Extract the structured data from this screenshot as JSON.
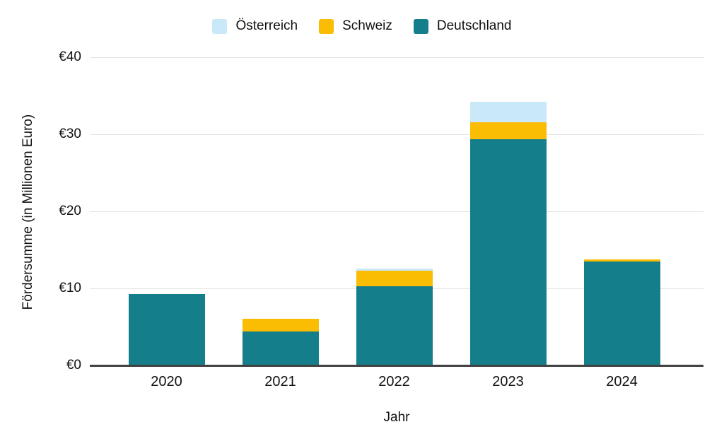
{
  "chart_data": {
    "type": "bar",
    "stacked": true,
    "categories": [
      "2020",
      "2021",
      "2022",
      "2023",
      "2024"
    ],
    "series": [
      {
        "name": "Deutschland",
        "color": "#147E8A",
        "values": [
          9.3,
          4.4,
          10.3,
          29.4,
          13.5
        ]
      },
      {
        "name": "Schweiz",
        "color": "#FBBC04",
        "values": [
          0,
          1.7,
          2.0,
          2.2,
          0.3
        ]
      },
      {
        "name": "Österreich",
        "color": "#C9E8F8",
        "values": [
          0,
          0,
          0.3,
          2.6,
          0
        ]
      }
    ],
    "legend_order": [
      "Österreich",
      "Schweiz",
      "Deutschland"
    ],
    "legend_position": "top",
    "xlabel": "Jahr",
    "ylabel": "Fördersumme (in Millionen Euro)",
    "ylim": [
      0,
      40
    ],
    "y_ticks": [
      {
        "value": 0,
        "label": "€0"
      },
      {
        "value": 10,
        "label": "€10"
      },
      {
        "value": 20,
        "label": "€20"
      },
      {
        "value": 30,
        "label": "€30"
      },
      {
        "value": 40,
        "label": "€40"
      }
    ],
    "grid": true
  },
  "colors": {
    "background": "#FFFFFF",
    "gridline": "#E2E2E2",
    "axis_line": "#424242",
    "text": "#111111"
  }
}
